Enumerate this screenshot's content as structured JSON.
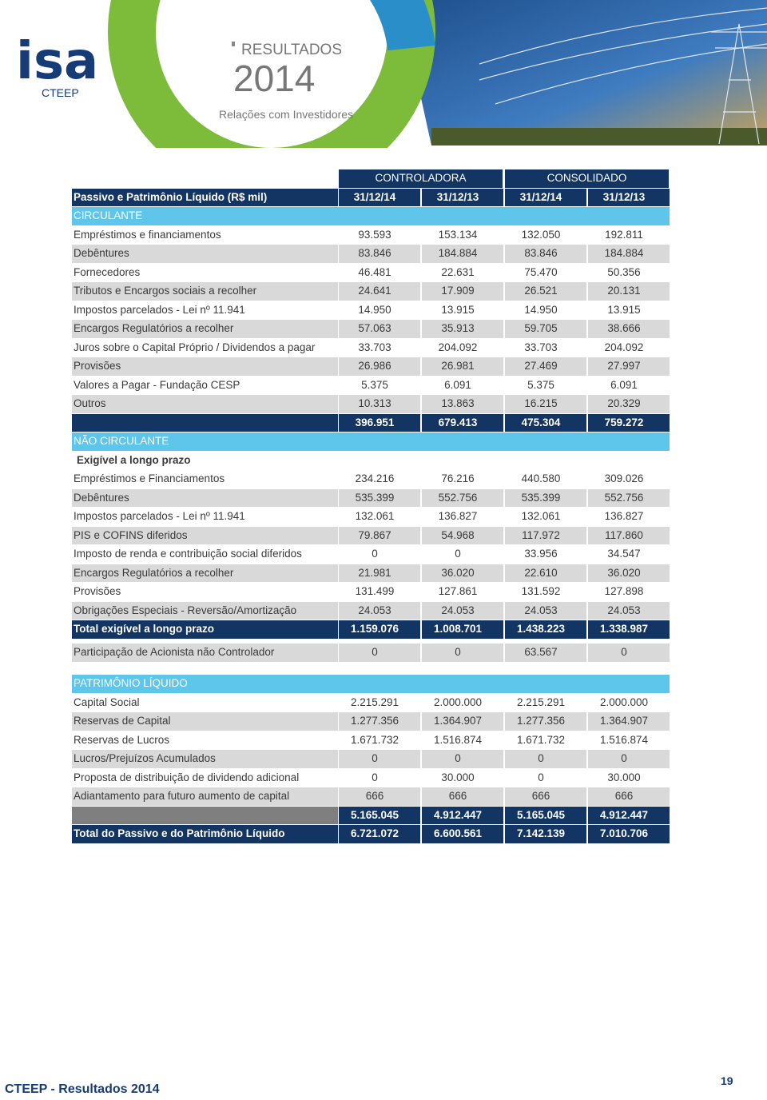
{
  "header": {
    "logo": "isa",
    "company": "CTEEP",
    "kicker": "RESULTADOS",
    "year": "2014",
    "subtitle": "Relações com Investidores"
  },
  "table": {
    "groups": [
      "CONTROLADORA",
      "CONSOLIDADO"
    ],
    "column_label": "Passivo e Patrimônio Líquido (R$ mil)",
    "dates": [
      "31/12/14",
      "31/12/13",
      "31/12/14",
      "31/12/13"
    ],
    "rows": [
      {
        "label": "CIRCULANTE"
      },
      {
        "label": "Empréstimos e financiamentos",
        "values": [
          "93.593",
          "153.134",
          "132.050",
          "192.811"
        ]
      },
      {
        "label": "Debêntures",
        "values": [
          "83.846",
          "184.884",
          "83.846",
          "184.884"
        ]
      },
      {
        "label": "Fornecedores",
        "values": [
          "46.481",
          "22.631",
          "75.470",
          "50.356"
        ]
      },
      {
        "label": "Tributos e Encargos sociais a recolher",
        "values": [
          "24.641",
          "17.909",
          "26.521",
          "20.131"
        ]
      },
      {
        "label": "Impostos parcelados - Lei nº 11.941",
        "values": [
          "14.950",
          "13.915",
          "14.950",
          "13.915"
        ]
      },
      {
        "label": "Encargos Regulatórios a recolher",
        "values": [
          "57.063",
          "35.913",
          "59.705",
          "38.666"
        ]
      },
      {
        "label": "Juros sobre o Capital Próprio / Dividendos a pagar",
        "values": [
          "33.703",
          "204.092",
          "33.703",
          "204.092"
        ]
      },
      {
        "label": "Provisões",
        "values": [
          "26.986",
          "26.981",
          "27.469",
          "27.997"
        ]
      },
      {
        "label": "Valores a Pagar - Fundação CESP",
        "values": [
          "5.375",
          "6.091",
          "5.375",
          "6.091"
        ]
      },
      {
        "label": "Outros",
        "values": [
          "10.313",
          "13.863",
          "16.215",
          "20.329"
        ]
      },
      {
        "values": [
          "396.951",
          "679.413",
          "475.304",
          "759.272"
        ]
      },
      {
        "label": "NÃO CIRCULANTE"
      },
      {
        "label": "Exigível a longo prazo"
      },
      {
        "label": "Empréstimos e Financiamentos",
        "values": [
          "234.216",
          "76.216",
          "440.580",
          "309.026"
        ]
      },
      {
        "label": "Debêntures",
        "values": [
          "535.399",
          "552.756",
          "535.399",
          "552.756"
        ]
      },
      {
        "label": "Impostos parcelados - Lei nº 11.941",
        "values": [
          "132.061",
          "136.827",
          "132.061",
          "136.827"
        ]
      },
      {
        "label": "PIS e COFINS diferidos",
        "values": [
          "79.867",
          "54.968",
          "117.972",
          "117.860"
        ]
      },
      {
        "label": "Imposto de renda e contribuição social diferidos",
        "values": [
          "0",
          "0",
          "33.956",
          "34.547"
        ]
      },
      {
        "label": "Encargos Regulatórios a recolher",
        "values": [
          "21.981",
          "36.020",
          "22.610",
          "36.020"
        ]
      },
      {
        "label": "Provisões",
        "values": [
          "131.499",
          "127.861",
          "131.592",
          "127.898"
        ]
      },
      {
        "label": "Obrigações Especiais - Reversão/Amortização",
        "values": [
          "24.053",
          "24.053",
          "24.053",
          "24.053"
        ]
      },
      {
        "label": "Total exigível a longo prazo",
        "values": [
          "1.159.076",
          "1.008.701",
          "1.438.223",
          "1.338.987"
        ]
      },
      {
        "label": "Participação de Acionista não Controlador",
        "values": [
          "0",
          "0",
          "63.567",
          "0"
        ]
      },
      {
        "label": "PATRIMÔNIO LÍQUIDO"
      },
      {
        "label": "Capital Social",
        "values": [
          "2.215.291",
          "2.000.000",
          "2.215.291",
          "2.000.000"
        ]
      },
      {
        "label": "Reservas de Capital",
        "values": [
          "1.277.356",
          "1.364.907",
          "1.277.356",
          "1.364.907"
        ]
      },
      {
        "label": "Reservas de Lucros",
        "values": [
          "1.671.732",
          "1.516.874",
          "1.671.732",
          "1.516.874"
        ]
      },
      {
        "label": "Lucros/Prejuízos Acumulados",
        "values": [
          "0",
          "0",
          "0",
          "0"
        ]
      },
      {
        "label": "Proposta de distribuição de dividendo adicional",
        "values": [
          "0",
          "30.000",
          "0",
          "30.000"
        ]
      },
      {
        "label": "Adiantamento para futuro aumento de capital",
        "values": [
          "666",
          "666",
          "666",
          "666"
        ]
      },
      {
        "values": [
          "5.165.045",
          "4.912.447",
          "5.165.045",
          "4.912.447"
        ]
      },
      {
        "label": "Total do Passivo e do Patrimônio Líquido",
        "values": [
          "6.721.072",
          "6.600.561",
          "7.142.139",
          "7.010.706"
        ]
      }
    ]
  },
  "footer": {
    "text": "CTEEP - Resultados 2014",
    "page": "19"
  }
}
